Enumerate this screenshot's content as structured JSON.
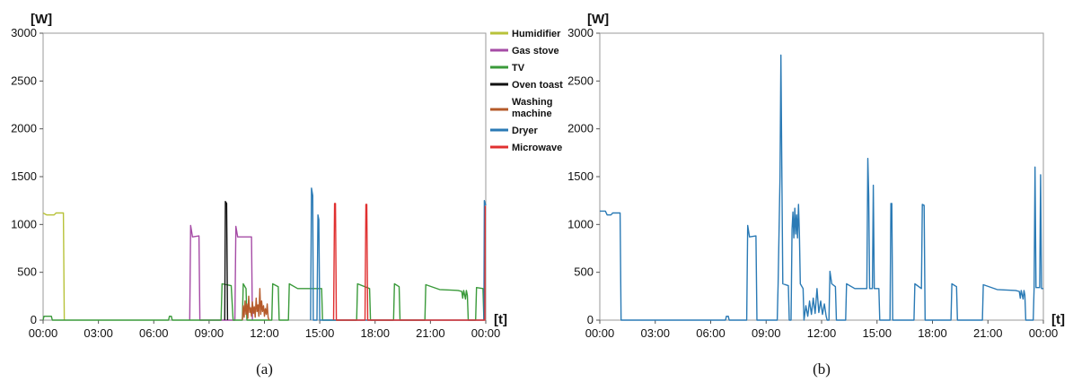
{
  "chart_data": [
    {
      "type": "line",
      "caption": "(a)",
      "y_unit": "[W]",
      "x_unit": "[t]",
      "ylim": [
        0,
        3000
      ],
      "yticks": [
        0,
        500,
        1000,
        1500,
        2000,
        2500,
        3000
      ],
      "xlim": [
        0,
        24
      ],
      "x_tick_labels": [
        "00:00",
        "03:00",
        "06:00",
        "09:00",
        "12:00",
        "15:00",
        "18:00",
        "21:00",
        "00:00"
      ],
      "grid": false,
      "legend_position": "right",
      "series": [
        {
          "name": "Humidifier",
          "color": "#b8c23a",
          "points": [
            [
              0,
              1120
            ],
            [
              0.2,
              1100
            ],
            [
              0.6,
              1100
            ],
            [
              0.7,
              1120
            ],
            [
              1.1,
              1120
            ],
            [
              1.15,
              0
            ]
          ]
        },
        {
          "name": "Gas stove",
          "color": "#a64ca6",
          "points": [
            [
              7.95,
              0
            ],
            [
              8.0,
              990
            ],
            [
              8.1,
              870
            ],
            [
              8.45,
              880
            ],
            [
              8.5,
              0
            ],
            [
              10.4,
              0
            ],
            [
              10.45,
              980
            ],
            [
              10.55,
              870
            ],
            [
              11.3,
              870
            ],
            [
              11.35,
              0
            ]
          ]
        },
        {
          "name": "TV",
          "color": "#3a9a3a",
          "points": [
            [
              0,
              0
            ],
            [
              0.05,
              40
            ],
            [
              0.45,
              40
            ],
            [
              0.5,
              0
            ],
            [
              6.8,
              0
            ],
            [
              6.85,
              40
            ],
            [
              6.95,
              40
            ],
            [
              7.0,
              0
            ],
            [
              9.65,
              0
            ],
            [
              9.7,
              380
            ],
            [
              10.2,
              360
            ],
            [
              10.3,
              0
            ],
            [
              10.8,
              0
            ],
            [
              10.85,
              380
            ],
            [
              11.0,
              330
            ],
            [
              11.05,
              0
            ],
            [
              12.4,
              0
            ],
            [
              12.45,
              380
            ],
            [
              12.75,
              350
            ],
            [
              12.8,
              0
            ],
            [
              13.3,
              0
            ],
            [
              13.35,
              380
            ],
            [
              13.8,
              330
            ],
            [
              15.1,
              330
            ],
            [
              15.15,
              0
            ],
            [
              17.0,
              0
            ],
            [
              17.05,
              380
            ],
            [
              17.7,
              330
            ],
            [
              17.75,
              0
            ],
            [
              19.0,
              0
            ],
            [
              19.05,
              380
            ],
            [
              19.3,
              350
            ],
            [
              19.35,
              0
            ],
            [
              20.7,
              0
            ],
            [
              20.75,
              370
            ],
            [
              21.5,
              320
            ],
            [
              22.5,
              310
            ],
            [
              22.7,
              300
            ],
            [
              22.75,
              230
            ],
            [
              22.8,
              310
            ],
            [
              22.9,
              220
            ],
            [
              22.95,
              310
            ],
            [
              23.0,
              260
            ],
            [
              23.05,
              0
            ],
            [
              23.45,
              0
            ],
            [
              23.5,
              340
            ],
            [
              23.85,
              330
            ],
            [
              23.9,
              0
            ]
          ]
        },
        {
          "name": "Oven toast",
          "color": "#111111",
          "points": [
            [
              9.85,
              0
            ],
            [
              9.88,
              1240
            ],
            [
              9.95,
              1220
            ],
            [
              10.0,
              0
            ]
          ]
        },
        {
          "name": "Washing machine",
          "color": "#b55a2a",
          "points": [
            [
              10.8,
              0
            ],
            [
              10.85,
              150
            ],
            [
              10.9,
              30
            ],
            [
              10.95,
              200
            ],
            [
              11.0,
              60
            ],
            [
              11.05,
              170
            ],
            [
              11.1,
              20
            ],
            [
              11.15,
              250
            ],
            [
              11.2,
              80
            ],
            [
              11.25,
              130
            ],
            [
              11.3,
              40
            ],
            [
              11.35,
              190
            ],
            [
              11.4,
              70
            ],
            [
              11.45,
              140
            ],
            [
              11.5,
              30
            ],
            [
              11.55,
              230
            ],
            [
              11.6,
              90
            ],
            [
              11.65,
              160
            ],
            [
              11.7,
              40
            ],
            [
              11.75,
              330
            ],
            [
              11.8,
              60
            ],
            [
              11.85,
              200
            ],
            [
              11.9,
              90
            ],
            [
              11.95,
              150
            ],
            [
              12.0,
              40
            ],
            [
              12.05,
              120
            ],
            [
              12.1,
              60
            ],
            [
              12.15,
              170
            ],
            [
              12.2,
              30
            ],
            [
              12.25,
              0
            ]
          ]
        },
        {
          "name": "Dryer",
          "color": "#2a7ab5",
          "points": [
            [
              14.5,
              0
            ],
            [
              14.55,
              1380
            ],
            [
              14.62,
              1300
            ],
            [
              14.65,
              0
            ],
            [
              14.85,
              0
            ],
            [
              14.9,
              1100
            ],
            [
              14.95,
              1050
            ],
            [
              15.0,
              0
            ],
            [
              23.9,
              0
            ],
            [
              23.92,
              1250
            ],
            [
              24.0,
              1200
            ]
          ]
        },
        {
          "name": "Microwave",
          "color": "#e03030",
          "points": [
            [
              15.75,
              0
            ],
            [
              15.8,
              1220
            ],
            [
              15.85,
              1220
            ],
            [
              15.9,
              0
            ],
            [
              17.45,
              0
            ],
            [
              17.5,
              1210
            ],
            [
              17.55,
              1210
            ],
            [
              17.6,
              0
            ],
            [
              23.95,
              0
            ],
            [
              23.97,
              1190
            ],
            [
              24.0,
              1190
            ]
          ]
        }
      ]
    },
    {
      "type": "line",
      "caption": "(b)",
      "y_unit": "[W]",
      "x_unit": "[t]",
      "ylim": [
        0,
        3000
      ],
      "yticks": [
        0,
        500,
        1000,
        1500,
        2000,
        2500,
        3000
      ],
      "xlim": [
        0,
        24
      ],
      "x_tick_labels": [
        "00:00",
        "03:00",
        "06:00",
        "09:00",
        "12:00",
        "15:00",
        "18:00",
        "21:00",
        "00:00"
      ],
      "grid": false,
      "series": [
        {
          "color": "#2a7ab5",
          "points": [
            [
              0,
              1140
            ],
            [
              0.3,
              1140
            ],
            [
              0.4,
              1100
            ],
            [
              0.6,
              1100
            ],
            [
              0.7,
              1120
            ],
            [
              1.1,
              1120
            ],
            [
              1.15,
              0
            ],
            [
              6.8,
              0
            ],
            [
              6.85,
              40
            ],
            [
              6.95,
              40
            ],
            [
              7.0,
              0
            ],
            [
              7.95,
              0
            ],
            [
              8.0,
              990
            ],
            [
              8.1,
              870
            ],
            [
              8.45,
              880
            ],
            [
              8.5,
              0
            ],
            [
              9.6,
              0
            ],
            [
              9.65,
              380
            ],
            [
              9.75,
              1500
            ],
            [
              9.8,
              2770
            ],
            [
              9.85,
              1600
            ],
            [
              9.9,
              380
            ],
            [
              10.2,
              360
            ],
            [
              10.25,
              0
            ],
            [
              10.35,
              0
            ],
            [
              10.4,
              950
            ],
            [
              10.45,
              1130
            ],
            [
              10.5,
              860
            ],
            [
              10.55,
              1170
            ],
            [
              10.6,
              900
            ],
            [
              10.65,
              1100
            ],
            [
              10.7,
              860
            ],
            [
              10.75,
              1210
            ],
            [
              10.8,
              900
            ],
            [
              10.85,
              380
            ],
            [
              11.0,
              330
            ],
            [
              11.05,
              0
            ],
            [
              11.15,
              150
            ],
            [
              11.25,
              40
            ],
            [
              11.35,
              200
            ],
            [
              11.45,
              60
            ],
            [
              11.55,
              230
            ],
            [
              11.65,
              70
            ],
            [
              11.75,
              330
            ],
            [
              11.85,
              80
            ],
            [
              11.95,
              200
            ],
            [
              12.05,
              60
            ],
            [
              12.15,
              170
            ],
            [
              12.25,
              40
            ],
            [
              12.3,
              0
            ],
            [
              12.4,
              0
            ],
            [
              12.45,
              510
            ],
            [
              12.55,
              380
            ],
            [
              12.75,
              350
            ],
            [
              12.8,
              0
            ],
            [
              13.3,
              0
            ],
            [
              13.35,
              380
            ],
            [
              13.8,
              330
            ],
            [
              14.45,
              330
            ],
            [
              14.5,
              1690
            ],
            [
              14.55,
              1300
            ],
            [
              14.6,
              330
            ],
            [
              14.75,
              330
            ],
            [
              14.8,
              1410
            ],
            [
              14.85,
              330
            ],
            [
              15.1,
              330
            ],
            [
              15.15,
              0
            ],
            [
              15.7,
              0
            ],
            [
              15.75,
              1220
            ],
            [
              15.8,
              1220
            ],
            [
              15.85,
              0
            ],
            [
              17.0,
              0
            ],
            [
              17.05,
              380
            ],
            [
              17.4,
              330
            ],
            [
              17.45,
              1210
            ],
            [
              17.55,
              1200
            ],
            [
              17.6,
              0
            ],
            [
              19.0,
              0
            ],
            [
              19.05,
              380
            ],
            [
              19.3,
              350
            ],
            [
              19.35,
              0
            ],
            [
              20.7,
              0
            ],
            [
              20.75,
              370
            ],
            [
              21.5,
              320
            ],
            [
              22.5,
              310
            ],
            [
              22.7,
              300
            ],
            [
              22.75,
              230
            ],
            [
              22.8,
              310
            ],
            [
              22.9,
              220
            ],
            [
              22.95,
              310
            ],
            [
              23.0,
              260
            ],
            [
              23.05,
              0
            ],
            [
              23.45,
              0
            ],
            [
              23.5,
              340
            ],
            [
              23.55,
              1600
            ],
            [
              23.6,
              340
            ],
            [
              23.8,
              340
            ],
            [
              23.85,
              1520
            ],
            [
              23.9,
              330
            ],
            [
              24.0,
              330
            ]
          ]
        }
      ]
    }
  ]
}
